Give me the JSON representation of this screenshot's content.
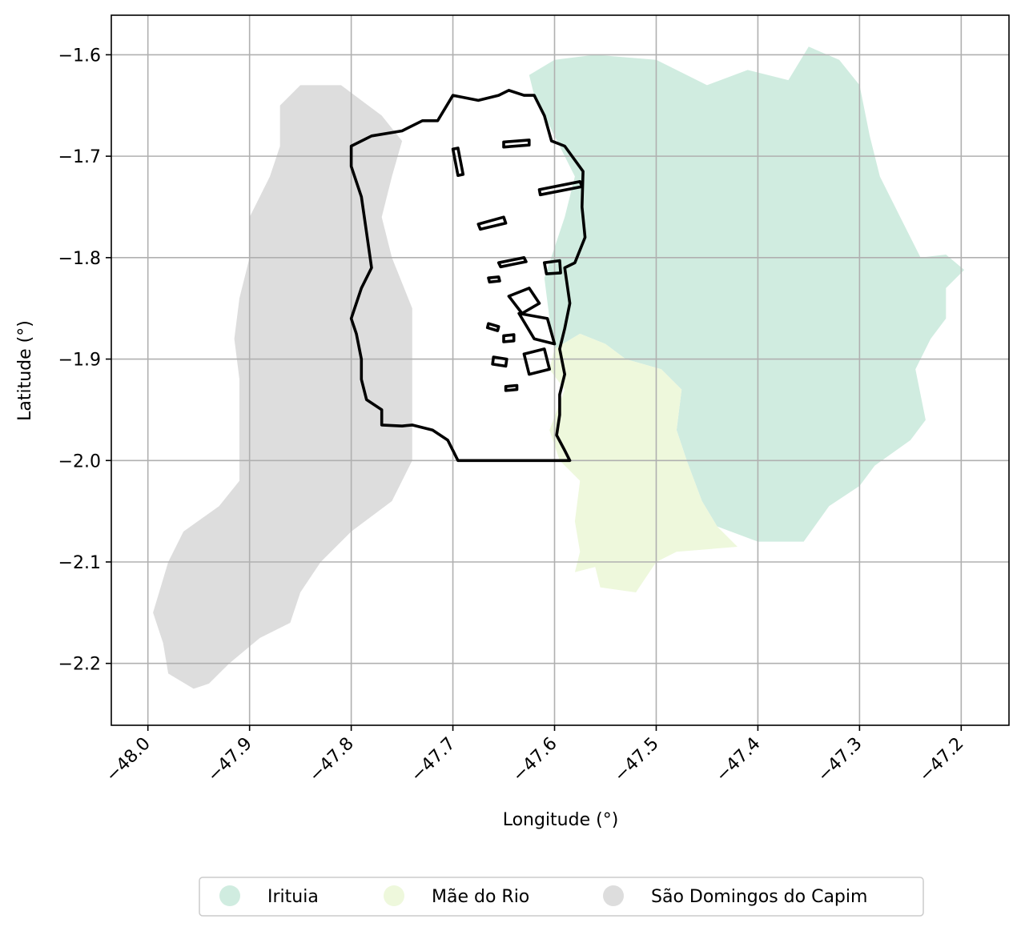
{
  "chart_data": {
    "type": "map",
    "xlabel": "Longitude (°)",
    "ylabel": "Latitude (°)",
    "xlim": [
      -48.036,
      -47.153
    ],
    "ylim": [
      -2.261,
      -1.561
    ],
    "x_ticks": [
      -48.0,
      -47.9,
      -47.8,
      -47.7,
      -47.6,
      -47.5,
      -47.4,
      -47.3,
      -47.2
    ],
    "x_tick_labels": [
      "−48.0",
      "−47.9",
      "−47.8",
      "−47.7",
      "−47.6",
      "−47.5",
      "−47.4",
      "−47.3",
      "−47.2"
    ],
    "y_ticks": [
      -1.6,
      -1.7,
      -1.8,
      -1.9,
      -2.0,
      -2.1,
      -2.2
    ],
    "y_tick_labels": [
      "−1.6",
      "−1.7",
      "−1.8",
      "−1.9",
      "−2.0",
      "−2.1",
      "−2.2"
    ],
    "x_tick_rotation_deg": 45,
    "grid": true,
    "legend_position": "bottom-center",
    "regions": [
      {
        "name": "Irituia",
        "color": "#d0ece0",
        "outline": [
          [
            -47.625,
            -1.62
          ],
          [
            -47.6,
            -1.605
          ],
          [
            -47.56,
            -1.6
          ],
          [
            -47.5,
            -1.605
          ],
          [
            -47.45,
            -1.63
          ],
          [
            -47.41,
            -1.615
          ],
          [
            -47.37,
            -1.625
          ],
          [
            -47.35,
            -1.592
          ],
          [
            -47.32,
            -1.605
          ],
          [
            -47.3,
            -1.63
          ],
          [
            -47.29,
            -1.68
          ],
          [
            -47.28,
            -1.72
          ],
          [
            -47.26,
            -1.76
          ],
          [
            -47.24,
            -1.8
          ],
          [
            -47.215,
            -1.797
          ],
          [
            -47.197,
            -1.812
          ],
          [
            -47.215,
            -1.83
          ],
          [
            -47.215,
            -1.86
          ],
          [
            -47.23,
            -1.88
          ],
          [
            -47.245,
            -1.91
          ],
          [
            -47.235,
            -1.96
          ],
          [
            -47.25,
            -1.98
          ],
          [
            -47.285,
            -2.005
          ],
          [
            -47.3,
            -2.025
          ],
          [
            -47.33,
            -2.045
          ],
          [
            -47.355,
            -2.08
          ],
          [
            -47.4,
            -2.08
          ],
          [
            -47.44,
            -2.065
          ],
          [
            -47.455,
            -2.04
          ],
          [
            -47.47,
            -2.0
          ],
          [
            -47.48,
            -1.97
          ],
          [
            -47.475,
            -1.93
          ],
          [
            -47.495,
            -1.91
          ],
          [
            -47.53,
            -1.9
          ],
          [
            -47.55,
            -1.885
          ],
          [
            -47.575,
            -1.875
          ],
          [
            -47.6,
            -1.89
          ],
          [
            -47.605,
            -1.86
          ],
          [
            -47.61,
            -1.82
          ],
          [
            -47.6,
            -1.79
          ],
          [
            -47.59,
            -1.76
          ],
          [
            -47.58,
            -1.72
          ],
          [
            -47.6,
            -1.68
          ],
          [
            -47.62,
            -1.64
          ]
        ]
      },
      {
        "name": "Mãe do Rio",
        "color": "#eef8dc",
        "outline": [
          [
            -47.6,
            -1.89
          ],
          [
            -47.575,
            -1.875
          ],
          [
            -47.55,
            -1.885
          ],
          [
            -47.53,
            -1.9
          ],
          [
            -47.495,
            -1.91
          ],
          [
            -47.475,
            -1.93
          ],
          [
            -47.48,
            -1.97
          ],
          [
            -47.47,
            -2.0
          ],
          [
            -47.455,
            -2.04
          ],
          [
            -47.44,
            -2.065
          ],
          [
            -47.42,
            -2.085
          ],
          [
            -47.48,
            -2.09
          ],
          [
            -47.5,
            -2.1
          ],
          [
            -47.52,
            -2.13
          ],
          [
            -47.555,
            -2.125
          ],
          [
            -47.56,
            -2.105
          ],
          [
            -47.58,
            -2.11
          ],
          [
            -47.575,
            -2.09
          ],
          [
            -47.58,
            -2.06
          ],
          [
            -47.575,
            -2.02
          ],
          [
            -47.595,
            -2.0
          ],
          [
            -47.605,
            -1.97
          ],
          [
            -47.59,
            -1.93
          ],
          [
            -47.605,
            -1.91
          ]
        ]
      },
      {
        "name": "São Domingos do Capim",
        "color": "#dddddd",
        "outline": [
          [
            -47.87,
            -1.65
          ],
          [
            -47.85,
            -1.63
          ],
          [
            -47.81,
            -1.63
          ],
          [
            -47.77,
            -1.66
          ],
          [
            -47.75,
            -1.685
          ],
          [
            -47.76,
            -1.72
          ],
          [
            -47.77,
            -1.76
          ],
          [
            -47.76,
            -1.8
          ],
          [
            -47.74,
            -1.85
          ],
          [
            -47.74,
            -1.9
          ],
          [
            -47.74,
            -1.95
          ],
          [
            -47.74,
            -2.0
          ],
          [
            -47.76,
            -2.04
          ],
          [
            -47.8,
            -2.07
          ],
          [
            -47.83,
            -2.1
          ],
          [
            -47.85,
            -2.13
          ],
          [
            -47.86,
            -2.16
          ],
          [
            -47.89,
            -2.175
          ],
          [
            -47.92,
            -2.2
          ],
          [
            -47.94,
            -2.22
          ],
          [
            -47.955,
            -2.225
          ],
          [
            -47.98,
            -2.21
          ],
          [
            -47.985,
            -2.18
          ],
          [
            -47.995,
            -2.15
          ],
          [
            -47.98,
            -2.1
          ],
          [
            -47.965,
            -2.07
          ],
          [
            -47.93,
            -2.045
          ],
          [
            -47.91,
            -2.02
          ],
          [
            -47.91,
            -1.97
          ],
          [
            -47.91,
            -1.92
          ],
          [
            -47.915,
            -1.88
          ],
          [
            -47.91,
            -1.84
          ],
          [
            -47.9,
            -1.8
          ],
          [
            -47.9,
            -1.76
          ],
          [
            -47.88,
            -1.72
          ],
          [
            -47.87,
            -1.69
          ]
        ]
      }
    ],
    "highlight": {
      "outline": [
        [
          -47.8,
          -1.69
        ],
        [
          -47.78,
          -1.68
        ],
        [
          -47.75,
          -1.675
        ],
        [
          -47.73,
          -1.665
        ],
        [
          -47.715,
          -1.665
        ],
        [
          -47.7,
          -1.64
        ],
        [
          -47.675,
          -1.645
        ],
        [
          -47.655,
          -1.64
        ],
        [
          -47.645,
          -1.635
        ],
        [
          -47.63,
          -1.64
        ],
        [
          -47.62,
          -1.64
        ],
        [
          -47.61,
          -1.66
        ],
        [
          -47.603,
          -1.685
        ],
        [
          -47.59,
          -1.69
        ],
        [
          -47.572,
          -1.715
        ],
        [
          -47.573,
          -1.75
        ],
        [
          -47.57,
          -1.78
        ],
        [
          -47.58,
          -1.805
        ],
        [
          -47.59,
          -1.81
        ],
        [
          -47.585,
          -1.845
        ],
        [
          -47.59,
          -1.87
        ],
        [
          -47.595,
          -1.89
        ],
        [
          -47.59,
          -1.915
        ],
        [
          -47.595,
          -1.935
        ],
        [
          -47.595,
          -1.955
        ],
        [
          -47.598,
          -1.975
        ],
        [
          -47.59,
          -1.99
        ],
        [
          -47.585,
          -2.0
        ],
        [
          -47.695,
          -2.0
        ],
        [
          -47.705,
          -1.98
        ],
        [
          -47.72,
          -1.97
        ],
        [
          -47.74,
          -1.965
        ],
        [
          -47.75,
          -1.966
        ],
        [
          -47.77,
          -1.965
        ],
        [
          -47.77,
          -1.95
        ],
        [
          -47.785,
          -1.94
        ],
        [
          -47.79,
          -1.92
        ],
        [
          -47.79,
          -1.9
        ],
        [
          -47.795,
          -1.875
        ],
        [
          -47.8,
          -1.86
        ],
        [
          -47.79,
          -1.83
        ],
        [
          -47.78,
          -1.81
        ],
        [
          -47.785,
          -1.775
        ],
        [
          -47.79,
          -1.74
        ],
        [
          -47.8,
          -1.71
        ]
      ],
      "inner_parcels": [
        [
          [
            -47.65,
            -1.686
          ],
          [
            -47.625,
            -1.684
          ],
          [
            -47.625,
            -1.689
          ],
          [
            -47.65,
            -1.691
          ]
        ],
        [
          [
            -47.7,
            -1.693
          ],
          [
            -47.695,
            -1.692
          ],
          [
            -47.69,
            -1.718
          ],
          [
            -47.695,
            -1.719
          ]
        ],
        [
          [
            -47.615,
            -1.733
          ],
          [
            -47.575,
            -1.725
          ],
          [
            -47.573,
            -1.73
          ],
          [
            -47.614,
            -1.738
          ]
        ],
        [
          [
            -47.675,
            -1.767
          ],
          [
            -47.65,
            -1.76
          ],
          [
            -47.648,
            -1.766
          ],
          [
            -47.673,
            -1.772
          ]
        ],
        [
          [
            -47.655,
            -1.805
          ],
          [
            -47.63,
            -1.8
          ],
          [
            -47.628,
            -1.804
          ],
          [
            -47.653,
            -1.809
          ]
        ],
        [
          [
            -47.61,
            -1.805
          ],
          [
            -47.595,
            -1.803
          ],
          [
            -47.594,
            -1.815
          ],
          [
            -47.608,
            -1.816
          ]
        ],
        [
          [
            -47.665,
            -1.82
          ],
          [
            -47.655,
            -1.819
          ],
          [
            -47.654,
            -1.823
          ],
          [
            -47.664,
            -1.824
          ]
        ],
        [
          [
            -47.645,
            -1.838
          ],
          [
            -47.625,
            -1.83
          ],
          [
            -47.615,
            -1.845
          ],
          [
            -47.632,
            -1.855
          ]
        ],
        [
          [
            -47.635,
            -1.855
          ],
          [
            -47.607,
            -1.86
          ],
          [
            -47.6,
            -1.885
          ],
          [
            -47.62,
            -1.88
          ]
        ],
        [
          [
            -47.63,
            -1.895
          ],
          [
            -47.61,
            -1.89
          ],
          [
            -47.605,
            -1.91
          ],
          [
            -47.625,
            -1.915
          ]
        ],
        [
          [
            -47.665,
            -1.865
          ],
          [
            -47.655,
            -1.868
          ],
          [
            -47.656,
            -1.872
          ],
          [
            -47.666,
            -1.869
          ]
        ],
        [
          [
            -47.65,
            -1.877
          ],
          [
            -47.64,
            -1.876
          ],
          [
            -47.64,
            -1.882
          ],
          [
            -47.65,
            -1.883
          ]
        ],
        [
          [
            -47.66,
            -1.898
          ],
          [
            -47.647,
            -1.9
          ],
          [
            -47.648,
            -1.907
          ],
          [
            -47.661,
            -1.905
          ]
        ],
        [
          [
            -47.648,
            -1.927
          ],
          [
            -47.637,
            -1.926
          ],
          [
            -47.637,
            -1.93
          ],
          [
            -47.648,
            -1.931
          ]
        ]
      ]
    },
    "legend": [
      "Irituia",
      "Mãe do Rio",
      "São Domingos do Capim"
    ]
  }
}
